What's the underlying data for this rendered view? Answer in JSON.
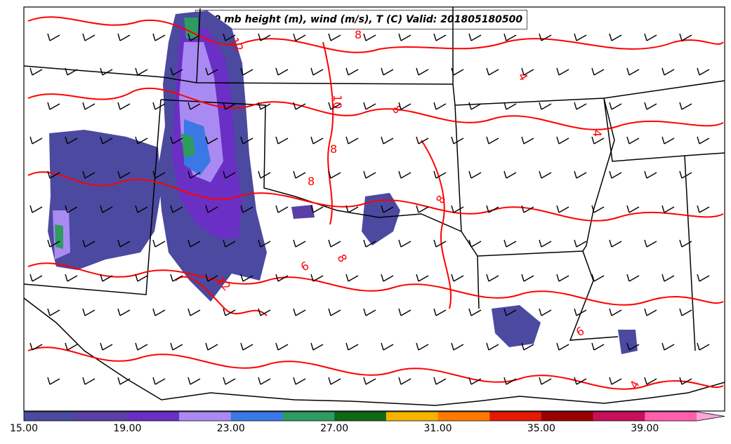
{
  "title": "500 mb height (m), wind (m/s), T (C) Valid: 201805180500",
  "colorbar": {
    "tick_labels": [
      "15.00",
      "19.00",
      "23.00",
      "27.00",
      "31.00",
      "35.00",
      "39.00"
    ],
    "colors": [
      "#4b4aa0",
      "#5a3fa6",
      "#6a2fc4",
      "#a98af3",
      "#3a78e6",
      "#2e9b61",
      "#0f6a14",
      "#f4b400",
      "#ff7a00",
      "#e51a00",
      "#9a0000",
      "#c8105a",
      "#ff5fae",
      "#ffa6d9"
    ]
  },
  "contour_labels": [
    "12",
    "8",
    "10",
    "8",
    "8",
    "8",
    "4",
    "4",
    "8",
    "8",
    "12",
    "6",
    "6",
    "4"
  ],
  "colors": {
    "contour": "#ff0000",
    "border": "#000000",
    "barb": "#000000"
  }
}
